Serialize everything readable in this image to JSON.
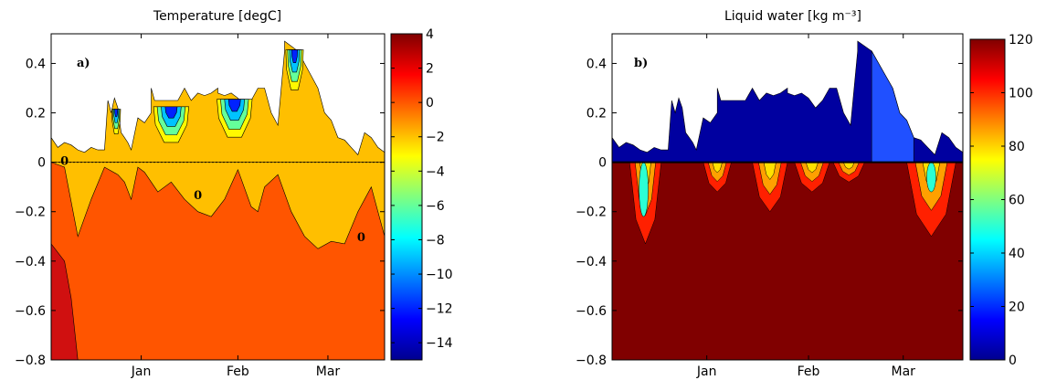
{
  "chart_data": [
    {
      "type": "heatmap",
      "panel_label": "a)",
      "title": "Temperature [degC]",
      "xlabel": "",
      "ylabel": "",
      "x_ticks": [
        "Jan",
        "Feb",
        "Mar"
      ],
      "y_ticks": [
        "0.4",
        "0.2",
        "0",
        "−0.2",
        "−0.4",
        "−0.6",
        "−0.8"
      ],
      "ylim": [
        -0.8,
        0.52
      ],
      "colorbar": {
        "range": [
          -15,
          4
        ],
        "ticks": [
          "4",
          "2",
          "0",
          "−2",
          "−4",
          "−6",
          "−8",
          "−10",
          "−12",
          "−14"
        ],
        "colormap": "jet"
      },
      "contour_label": "0",
      "zero_line": "dotted",
      "snow_surface": {
        "x": [
          0,
          0.02,
          0.04,
          0.06,
          0.08,
          0.1,
          0.12,
          0.14,
          0.16,
          0.17,
          0.18,
          0.19,
          0.2,
          0.21,
          0.22,
          0.23,
          0.24,
          0.26,
          0.28,
          0.3,
          0.3,
          0.31,
          0.32,
          0.34,
          0.36,
          0.38,
          0.4,
          0.42,
          0.44,
          0.46,
          0.48,
          0.5,
          0.5,
          0.52,
          0.54,
          0.56,
          0.58,
          0.6,
          0.62,
          0.64,
          0.66,
          0.68,
          0.7,
          0.7,
          0.72,
          0.74,
          0.76,
          0.78,
          0.8,
          0.82,
          0.84,
          0.86,
          0.88,
          0.9,
          0.92,
          0.94,
          0.96,
          0.98,
          1.0
        ],
        "y": [
          0.1,
          0.06,
          0.08,
          0.07,
          0.05,
          0.04,
          0.06,
          0.05,
          0.05,
          0.25,
          0.2,
          0.26,
          0.22,
          0.12,
          0.1,
          0.08,
          0.05,
          0.18,
          0.16,
          0.2,
          0.3,
          0.25,
          0.25,
          0.25,
          0.25,
          0.25,
          0.3,
          0.25,
          0.28,
          0.27,
          0.28,
          0.3,
          0.28,
          0.27,
          0.28,
          0.26,
          0.22,
          0.25,
          0.3,
          0.3,
          0.2,
          0.15,
          0.45,
          0.49,
          0.47,
          0.45,
          0.4,
          0.35,
          0.3,
          0.2,
          0.17,
          0.1,
          0.09,
          0.06,
          0.03,
          0.12,
          0.1,
          0.06,
          0.04
        ]
      },
      "freezing_depth": {
        "x": [
          0,
          0.04,
          0.08,
          0.12,
          0.16,
          0.2,
          0.22,
          0.24,
          0.26,
          0.28,
          0.32,
          0.36,
          0.4,
          0.44,
          0.48,
          0.52,
          0.56,
          0.6,
          0.62,
          0.64,
          0.68,
          0.72,
          0.76,
          0.8,
          0.84,
          0.88,
          0.92,
          0.96,
          1.0
        ],
        "y": [
          0,
          -0.02,
          -0.3,
          -0.15,
          -0.02,
          -0.05,
          -0.08,
          -0.15,
          -0.02,
          -0.04,
          -0.12,
          -0.08,
          -0.15,
          -0.2,
          -0.22,
          -0.15,
          -0.03,
          -0.18,
          -0.2,
          -0.1,
          -0.05,
          -0.2,
          -0.3,
          -0.35,
          -0.32,
          -0.33,
          -0.2,
          -0.1,
          -0.3
        ]
      }
    },
    {
      "type": "heatmap",
      "panel_label": "b)",
      "title": "Liquid water [kg m⁻³]",
      "xlabel": "",
      "ylabel": "",
      "x_ticks": [
        "Jan",
        "Feb",
        "Mar"
      ],
      "y_ticks": [
        "0.4",
        "0.2",
        "0",
        "−0.2",
        "−0.4",
        "−0.6",
        "−0.8"
      ],
      "ylim": [
        -0.8,
        0.52
      ],
      "colorbar": {
        "range": [
          0,
          120
        ],
        "ticks": [
          "120",
          "100",
          "80",
          "60",
          "40",
          "20",
          "0"
        ],
        "colormap": "jet"
      },
      "snow_surface": {
        "x": [
          0,
          0.02,
          0.04,
          0.06,
          0.08,
          0.1,
          0.12,
          0.14,
          0.16,
          0.17,
          0.18,
          0.19,
          0.2,
          0.21,
          0.22,
          0.23,
          0.24,
          0.26,
          0.28,
          0.3,
          0.3,
          0.31,
          0.32,
          0.34,
          0.36,
          0.38,
          0.4,
          0.42,
          0.44,
          0.46,
          0.48,
          0.5,
          0.5,
          0.52,
          0.54,
          0.56,
          0.58,
          0.6,
          0.62,
          0.64,
          0.66,
          0.68,
          0.7,
          0.7,
          0.72,
          0.74,
          0.76,
          0.78,
          0.8,
          0.82,
          0.84,
          0.86,
          0.88,
          0.9,
          0.92,
          0.94,
          0.96,
          0.98,
          1.0
        ],
        "y": [
          0.1,
          0.06,
          0.08,
          0.07,
          0.05,
          0.04,
          0.06,
          0.05,
          0.05,
          0.25,
          0.2,
          0.26,
          0.22,
          0.12,
          0.1,
          0.08,
          0.05,
          0.18,
          0.16,
          0.2,
          0.3,
          0.25,
          0.25,
          0.25,
          0.25,
          0.25,
          0.3,
          0.25,
          0.28,
          0.27,
          0.28,
          0.3,
          0.28,
          0.27,
          0.28,
          0.26,
          0.22,
          0.25,
          0.3,
          0.3,
          0.2,
          0.15,
          0.45,
          0.49,
          0.47,
          0.45,
          0.4,
          0.35,
          0.3,
          0.2,
          0.17,
          0.1,
          0.09,
          0.06,
          0.03,
          0.12,
          0.1,
          0.06,
          0.04
        ]
      },
      "wet_zones": [
        {
          "x": [
            0.05,
            0.14
          ],
          "depth": -0.33
        },
        {
          "x": [
            0.26,
            0.34
          ],
          "depth": -0.12
        },
        {
          "x": [
            0.4,
            0.5
          ],
          "depth": -0.2
        },
        {
          "x": [
            0.52,
            0.62
          ],
          "depth": -0.12
        },
        {
          "x": [
            0.63,
            0.72
          ],
          "depth": -0.08
        },
        {
          "x": [
            0.84,
            0.98
          ],
          "depth": -0.3
        }
      ]
    }
  ]
}
